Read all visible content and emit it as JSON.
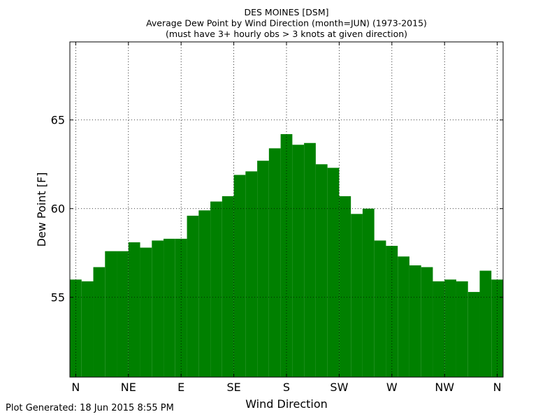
{
  "footer": {
    "generated": "Plot Generated: 18 Jun 2015 8:55 PM"
  },
  "chart_data": {
    "type": "bar",
    "title": [
      "DES MOINES [DSM]",
      "Average Dew Point by Wind Direction (month=JUN) (1973-2015)",
      "(must have 3+ hourly obs > 3 knots at given direction)"
    ],
    "xlabel": "Wind Direction",
    "ylabel": "Dew Point [F]",
    "bar_color": "#008000",
    "grid": true,
    "xlim": [
      -5,
      365
    ],
    "ylim": [
      50.5,
      69.4
    ],
    "bar_width_deg": 10,
    "x": [
      0,
      10,
      20,
      30,
      40,
      50,
      60,
      70,
      80,
      90,
      100,
      110,
      120,
      130,
      140,
      150,
      160,
      170,
      180,
      190,
      200,
      210,
      220,
      230,
      240,
      250,
      260,
      270,
      280,
      290,
      300,
      310,
      320,
      330,
      340,
      350,
      360
    ],
    "values": [
      56.0,
      55.9,
      56.7,
      57.6,
      57.6,
      58.1,
      57.8,
      58.2,
      58.3,
      58.3,
      59.6,
      59.9,
      60.4,
      60.7,
      61.9,
      62.1,
      62.7,
      63.4,
      64.2,
      63.6,
      63.7,
      62.5,
      62.3,
      60.7,
      59.7,
      60.0,
      58.2,
      57.9,
      57.3,
      56.8,
      56.7,
      55.9,
      56.0,
      55.9,
      55.3,
      56.5,
      56.0
    ],
    "x_ticks": [
      {
        "value": 0,
        "label": "N"
      },
      {
        "value": 45,
        "label": "NE"
      },
      {
        "value": 90,
        "label": "E"
      },
      {
        "value": 135,
        "label": "SE"
      },
      {
        "value": 180,
        "label": "S"
      },
      {
        "value": 225,
        "label": "SW"
      },
      {
        "value": 270,
        "label": "W"
      },
      {
        "value": 315,
        "label": "NW"
      },
      {
        "value": 360,
        "label": "N"
      }
    ],
    "y_ticks": [
      {
        "value": 55,
        "label": "55"
      },
      {
        "value": 60,
        "label": "60"
      },
      {
        "value": 65,
        "label": "65"
      }
    ]
  }
}
